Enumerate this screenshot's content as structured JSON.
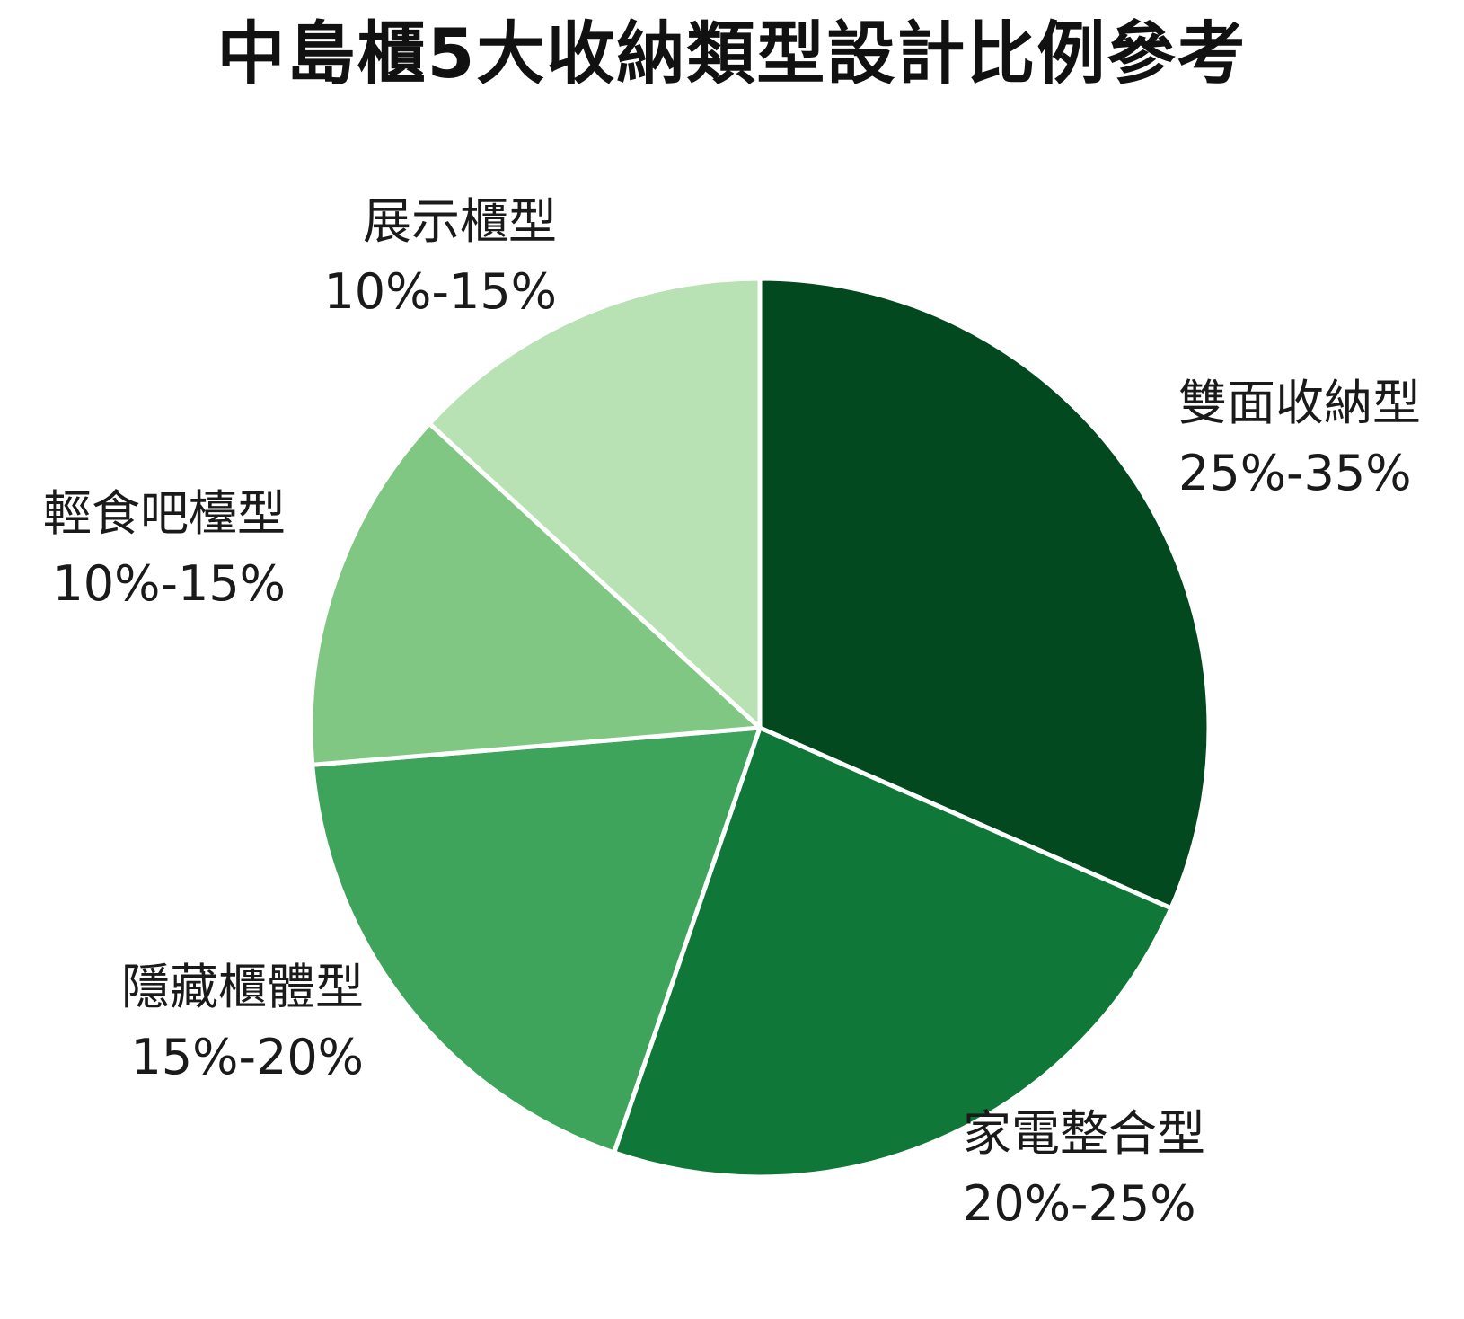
{
  "chart_data": {
    "type": "pie",
    "title": "中島櫃5大收納類型設計比例參考",
    "categories": [
      "雙面收納型",
      "家電整合型",
      "隱藏櫃體型",
      "輕食吧檯型",
      "展示櫃型"
    ],
    "ranges": [
      "25%-35%",
      "20%-25%",
      "15%-20%",
      "10%-15%",
      "10%-15%"
    ],
    "values": [
      30,
      22.5,
      17.5,
      12.5,
      12.5
    ],
    "colors": [
      "#02491f",
      "#0f7838",
      "#3ea45b",
      "#81c784",
      "#b8e2b3"
    ],
    "legend": "none",
    "start": "12 o'clock",
    "direction": "clockwise"
  }
}
